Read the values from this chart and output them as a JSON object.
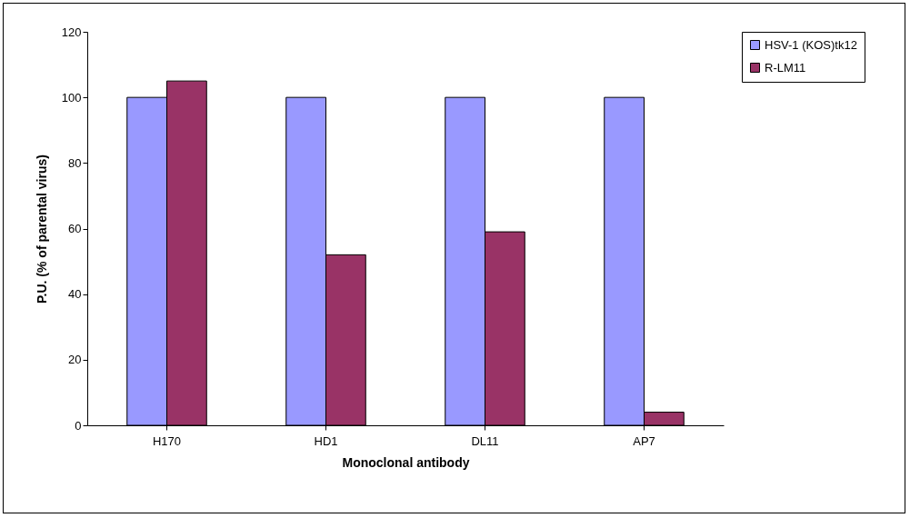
{
  "chart_data": {
    "type": "bar",
    "xlabel": "Monoclonal antibody",
    "ylabel": "P.U. (% of parental virus)",
    "categories": [
      "H170",
      "HD1",
      "DL11",
      "AP7"
    ],
    "series": [
      {
        "name": "HSV-1 (KOS)tk12",
        "color": "#9999ff",
        "values": [
          100,
          100,
          100,
          100
        ]
      },
      {
        "name": "R-LM11",
        "color": "#993366",
        "values": [
          105,
          52,
          59,
          4
        ]
      }
    ],
    "ylim": [
      0,
      120
    ],
    "yticks": [
      0,
      20,
      40,
      60,
      80,
      100,
      120
    ],
    "grid": false,
    "legend": "right"
  }
}
